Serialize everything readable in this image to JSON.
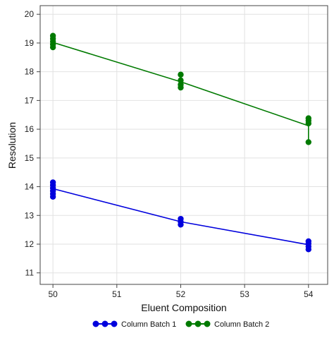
{
  "chart_data": {
    "type": "line",
    "title": "",
    "xlabel": "Eluent Composition",
    "ylabel": "Resolution",
    "xlim": [
      49.8,
      54.3
    ],
    "ylim": [
      10.6,
      20.3
    ],
    "x_ticks": [
      50,
      51,
      52,
      53,
      54
    ],
    "y_ticks": [
      11,
      12,
      13,
      14,
      15,
      16,
      17,
      18,
      19,
      20
    ],
    "grid": true,
    "legend_position": "bottom-center",
    "series": [
      {
        "name": "Column Batch 1",
        "color": "#0000dd",
        "points": [
          {
            "x": 50,
            "y": 13.65
          },
          {
            "x": 50,
            "y": 13.75
          },
          {
            "x": 50,
            "y": 13.85
          },
          {
            "x": 50,
            "y": 13.95
          },
          {
            "x": 50,
            "y": 14.05
          },
          {
            "x": 50,
            "y": 14.15
          },
          {
            "x": 52,
            "y": 12.68
          },
          {
            "x": 52,
            "y": 12.78
          },
          {
            "x": 52,
            "y": 12.88
          },
          {
            "x": 54,
            "y": 11.82
          },
          {
            "x": 54,
            "y": 11.92
          },
          {
            "x": 54,
            "y": 12.02
          },
          {
            "x": 54,
            "y": 12.1
          }
        ],
        "fit_line": [
          {
            "x": 50,
            "y": 13.93
          },
          {
            "x": 52,
            "y": 12.78
          },
          {
            "x": 54,
            "y": 11.98
          }
        ]
      },
      {
        "name": "Column Batch 2",
        "color": "#007a00",
        "points": [
          {
            "x": 50,
            "y": 18.85
          },
          {
            "x": 50,
            "y": 18.95
          },
          {
            "x": 50,
            "y": 19.05
          },
          {
            "x": 50,
            "y": 19.15
          },
          {
            "x": 50,
            "y": 19.25
          },
          {
            "x": 52,
            "y": 17.45
          },
          {
            "x": 52,
            "y": 17.55
          },
          {
            "x": 52,
            "y": 17.7
          },
          {
            "x": 52,
            "y": 17.9
          },
          {
            "x": 54,
            "y": 15.55
          },
          {
            "x": 54,
            "y": 16.2
          },
          {
            "x": 54,
            "y": 16.3
          },
          {
            "x": 54,
            "y": 16.38
          }
        ],
        "fit_line": [
          {
            "x": 50,
            "y": 19.02
          },
          {
            "x": 52,
            "y": 17.65
          },
          {
            "x": 54,
            "y": 16.12
          }
        ]
      }
    ]
  }
}
